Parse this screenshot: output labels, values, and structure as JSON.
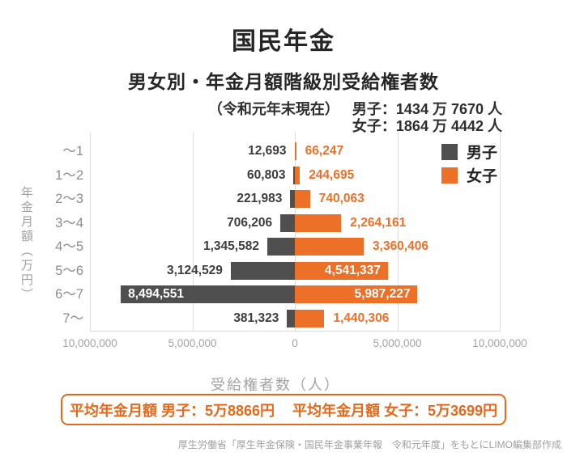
{
  "header": {
    "title": "国民年金",
    "subtitle": "男女別・年金月額階級別受給権者数",
    "as_of": "（令和元年末現在）",
    "male_total": "男子：1434 万 7670 人",
    "female_total": "女子：1864 万 4442 人"
  },
  "chart_data": {
    "type": "bar",
    "orientation": "horizontal-diverging",
    "title": "男女別・年金月額階級別受給権者数",
    "categories": [
      "～1",
      "1～2",
      "2～3",
      "3～4",
      "4～5",
      "5～6",
      "6～7",
      "7～"
    ],
    "series": [
      {
        "name": "男子",
        "side": "left",
        "color": "#4f4f4f",
        "values": [
          12693,
          60803,
          221983,
          706206,
          1345582,
          3124529,
          8494551,
          381323
        ]
      },
      {
        "name": "女子",
        "side": "right",
        "color": "#ed7029",
        "values": [
          66247,
          244695,
          740063,
          2264161,
          3360406,
          4541337,
          5987227,
          1440306
        ]
      }
    ],
    "xlabel": "受給権者数（人）",
    "ylabel": "年金月額（万円）",
    "xlim": [
      -10000000,
      10000000
    ],
    "x_tick_labels": [
      "10,000,000",
      "5,000,000",
      "0",
      "5,000,000",
      "10,000,000"
    ],
    "grid": true,
    "legend_position": "top-right"
  },
  "summary_box": {
    "male": "平均年金月額 男子：5万8866円",
    "female": "平均年金月額 女子：5万3699円"
  },
  "source": "厚生労働省「厚生年金保険・国民年金事業年報　令和元年度」をもとにLIMO編集部作成",
  "colors": {
    "male": "#4f4f4f",
    "female": "#ed7029",
    "accent_box": "#e4691c",
    "grid": "#dcdcdc",
    "axis_text": "#a3a3a3",
    "category_text": "#8c8c8c"
  }
}
